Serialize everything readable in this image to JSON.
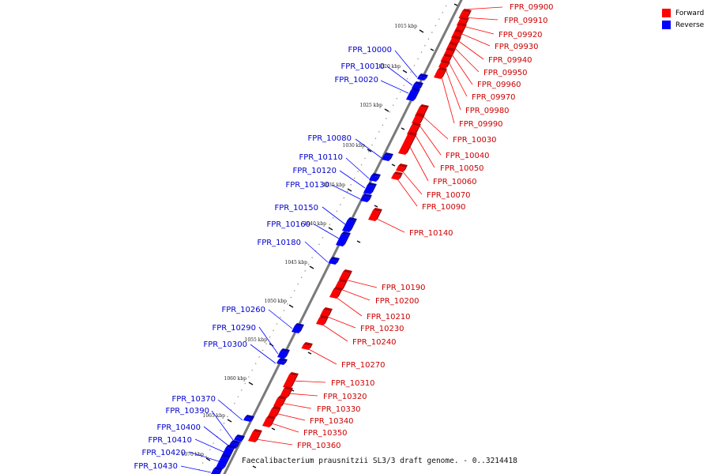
{
  "legend": {
    "items": [
      {
        "label": "Forward",
        "color": "#ff0000"
      },
      {
        "label": "Reverse",
        "color": "#0000ff"
      }
    ]
  },
  "caption": "Faecalibacterium prausnitzii SL3/3 draft genome. - 0..3214418",
  "scale_marks": [
    "1015 kbp",
    "1020 kbp",
    "1025 kbp",
    "1030 kbp",
    "1035 kbp",
    "1040 kbp",
    "1045 kbp",
    "1050 kbp",
    "1055 kbp",
    "1060 kbp",
    "1065 kbp",
    "1070 kbp"
  ],
  "forward_genes": [
    "FPR_09900",
    "FPR_09910",
    "FPR_09920",
    "FPR_09930",
    "FPR_09940",
    "FPR_09950",
    "FPR_09960",
    "FPR_09970",
    "FPR_09980",
    "FPR_09990",
    "FPR_10030",
    "FPR_10040",
    "FPR_10050",
    "FPR_10060",
    "FPR_10070",
    "FPR_10090",
    "FPR_10140",
    "FPR_10190",
    "FPR_10200",
    "FPR_10210",
    "FPR_10230",
    "FPR_10240",
    "FPR_10270",
    "FPR_10310",
    "FPR_10320",
    "FPR_10330",
    "FPR_10340",
    "FPR_10350",
    "FPR_10360"
  ],
  "reverse_genes": [
    "FPR_10000",
    "FPR_10010",
    "FPR_10020",
    "FPR_10080",
    "FPR_10110",
    "FPR_10120",
    "FPR_10130",
    "FPR_10150",
    "FPR_10160",
    "FPR_10180",
    "FPR_10260",
    "FPR_10290",
    "FPR_10300",
    "FPR_10370",
    "FPR_10390",
    "FPR_10400",
    "FPR_10410",
    "FPR_10420",
    "FPR_10430"
  ]
}
